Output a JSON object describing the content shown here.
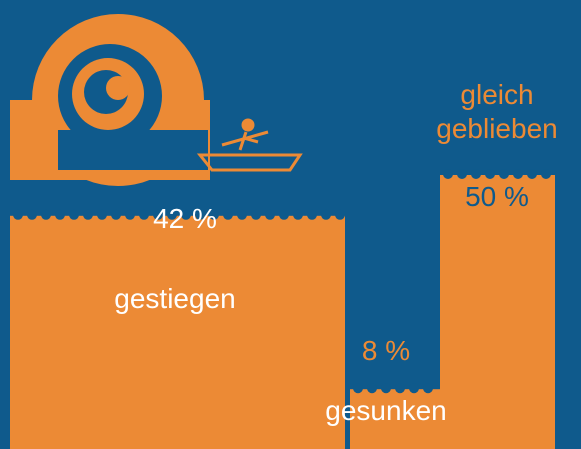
{
  "chart_data": {
    "type": "bar",
    "categories": [
      "gestiegen",
      "gesunken",
      "gleich geblieben"
    ],
    "values": [
      42,
      8,
      50
    ],
    "value_labels": [
      "42 %",
      "8 %",
      "50 %"
    ],
    "color": "#ec8a35"
  }
}
